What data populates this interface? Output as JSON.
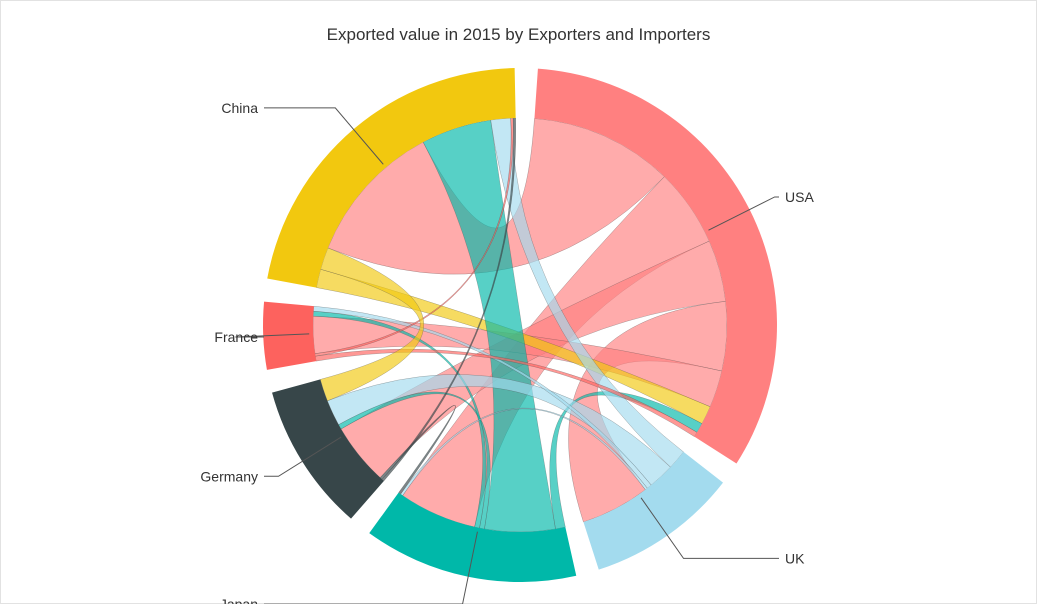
{
  "chart_data": {
    "type": "chord",
    "title": "Exported value in 2015 by Exporters and Importers",
    "nodes": [
      {
        "name": "USA",
        "color": "#ff8080"
      },
      {
        "name": "UK",
        "color": "#a3dbee"
      },
      {
        "name": "Japan",
        "color": "#00b8a9"
      },
      {
        "name": "Germany",
        "color": "#374649"
      },
      {
        "name": "France",
        "color": "#fd625e"
      },
      {
        "name": "China",
        "color": "#f2c80f"
      }
    ],
    "flows": [
      {
        "from": "USA",
        "to": "China",
        "value": 116
      },
      {
        "from": "USA",
        "to": "Japan",
        "value": 63
      },
      {
        "from": "USA",
        "to": "Germany",
        "value": 50
      },
      {
        "from": "USA",
        "to": "UK",
        "value": 56
      },
      {
        "from": "USA",
        "to": "France",
        "value": 30
      },
      {
        "from": "China",
        "to": "USA",
        "value": 15
      },
      {
        "from": "Japan",
        "to": "USA",
        "value": 8
      },
      {
        "from": "Japan",
        "to": "China",
        "value": 57
      },
      {
        "from": "Japan",
        "to": "Germany",
        "value": 4
      },
      {
        "from": "Japan",
        "to": "France",
        "value": 4
      },
      {
        "from": "UK",
        "to": "China",
        "value": 16
      },
      {
        "from": "UK",
        "to": "Germany",
        "value": 21
      },
      {
        "from": "UK",
        "to": "France",
        "value": 4
      },
      {
        "from": "UK",
        "to": "Japan",
        "value": 2
      },
      {
        "from": "France",
        "to": "USA",
        "value": 4
      },
      {
        "from": "France",
        "to": "China",
        "value": 2
      },
      {
        "from": "Germany",
        "to": "China",
        "value": 2
      },
      {
        "from": "Germany",
        "to": "Japan",
        "value": 2
      },
      {
        "from": "China",
        "to": "Germany",
        "value": 18
      }
    ],
    "legend": "none",
    "grid": false
  }
}
